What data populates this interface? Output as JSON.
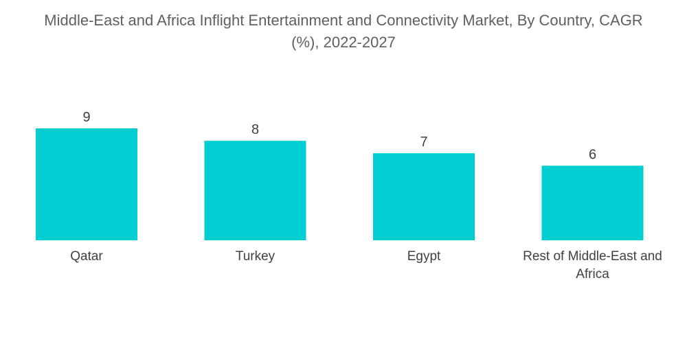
{
  "chart_data": {
    "type": "bar",
    "title": "Middle-East and Africa Inflight Entertainment and Connectivity Market, By Country, CAGR\n(%), 2022-2027",
    "categories": [
      "Qatar",
      "Turkey",
      "Egypt",
      "Rest of Middle-East and Africa"
    ],
    "values": [
      9,
      8,
      7,
      6
    ],
    "data_labels": [
      "9",
      "8",
      "7",
      "6"
    ],
    "xlabel": "",
    "ylabel": "",
    "ylim": [
      0,
      9
    ],
    "grid": false,
    "legend": "none",
    "bar_color": "#00CED1"
  }
}
